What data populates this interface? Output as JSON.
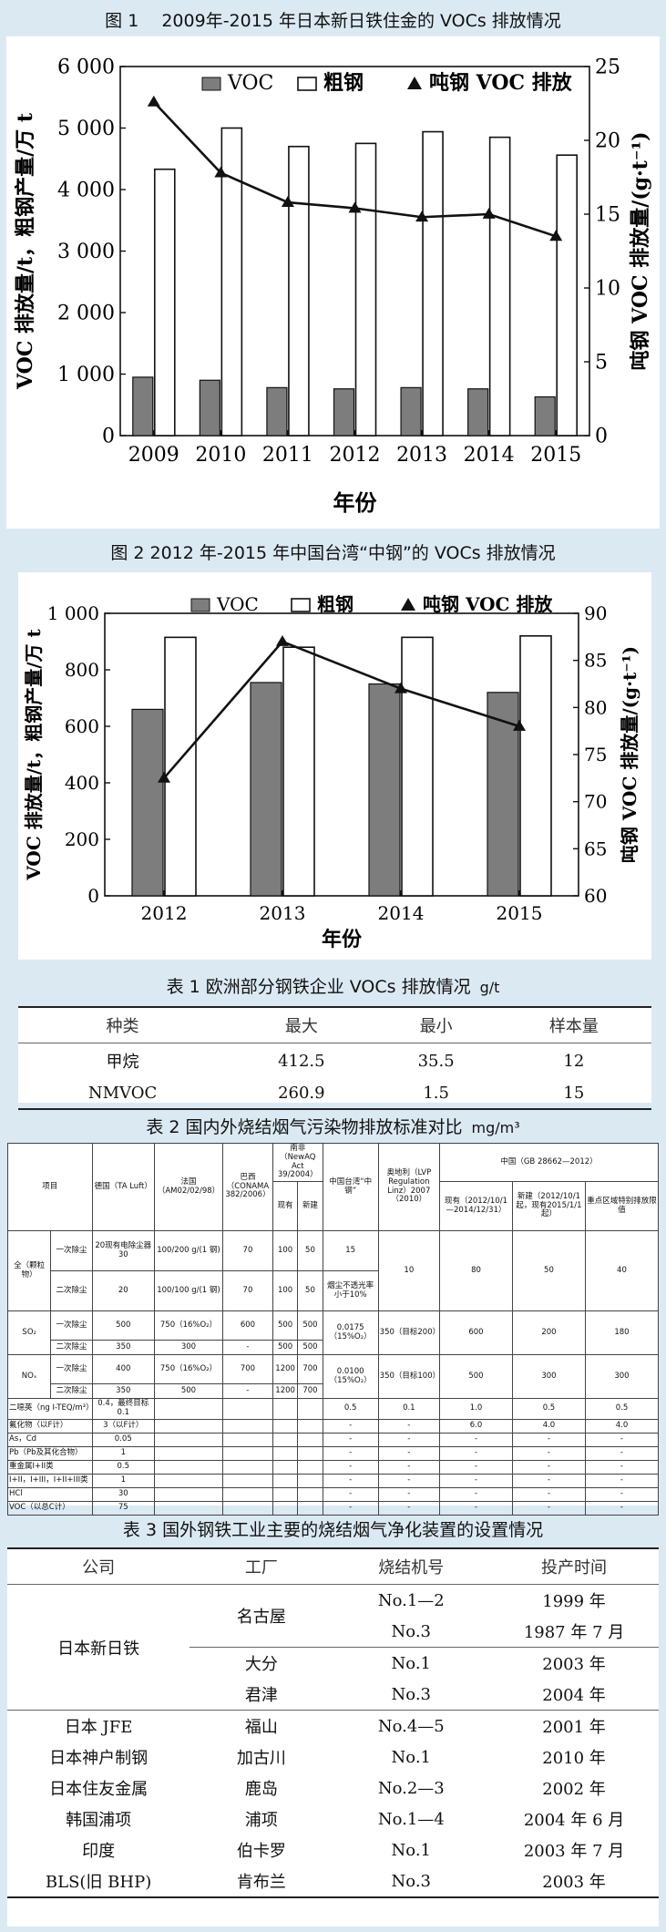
{
  "fig1": {
    "caption": "图 1　 2009年-2015 年日本新日铁住金的 VOCs 排放情况",
    "chart_data": {
      "type": "bar",
      "categories": [
        "2009",
        "2010",
        "2011",
        "2012",
        "2013",
        "2014",
        "2015"
      ],
      "series": [
        {
          "name": "VOC",
          "kind": "bar",
          "axis": "left",
          "values": [
            950,
            900,
            780,
            760,
            780,
            760,
            630
          ]
        },
        {
          "name": "粗钢",
          "kind": "bar",
          "axis": "left",
          "values": [
            4330,
            5000,
            4700,
            4750,
            4940,
            4850,
            4560
          ]
        },
        {
          "name": "吨钢 VOC 排放",
          "kind": "line",
          "axis": "right",
          "values": [
            22.6,
            17.8,
            15.8,
            15.4,
            14.8,
            15.0,
            13.5
          ]
        }
      ],
      "xlabel": "年份",
      "ylabel": "VOC 排放量/t，粗钢产量/万 t",
      "y2label": "吨钢 VOC 排放量/(g·t⁻¹)",
      "ylim": [
        0,
        6000
      ],
      "y2lim": [
        0,
        25
      ],
      "yticks": [
        "0",
        "1 000",
        "2 000",
        "3 000",
        "4 000",
        "5 000",
        "6 000"
      ],
      "y2ticks": [
        "0",
        "5",
        "10",
        "15",
        "20",
        "25"
      ],
      "legend": "top"
    }
  },
  "fig2": {
    "caption": "图 2 2012 年-2015 年中国台湾“中钢”的 VOCs 排放情况",
    "chart_data": {
      "type": "bar",
      "categories": [
        "2012",
        "2013",
        "2014",
        "2015"
      ],
      "series": [
        {
          "name": "VOC",
          "kind": "bar",
          "axis": "left",
          "values": [
            660,
            755,
            750,
            720
          ]
        },
        {
          "name": "粗钢",
          "kind": "bar",
          "axis": "left",
          "values": [
            915,
            880,
            915,
            920
          ]
        },
        {
          "name": "吨钢 VOC 排放",
          "kind": "line",
          "axis": "right",
          "values": [
            72.5,
            87,
            82,
            78
          ]
        }
      ],
      "xlabel": "年份",
      "ylabel": "VOC 排放量/t，粗钢产量/万 t",
      "y2label": "吨钢 VOC 排放量/(g·t⁻¹)",
      "ylim": [
        0,
        1000
      ],
      "y2lim": [
        60,
        90
      ],
      "yticks": [
        "0",
        "200",
        "400",
        "600",
        "800",
        "1 000"
      ],
      "y2ticks": [
        "60",
        "65",
        "70",
        "75",
        "80",
        "85",
        "90"
      ],
      "legend": "top"
    }
  },
  "table1": {
    "caption": "表 1 欧洲部分钢铁企业 VOCs 排放情况",
    "unit": "g/t",
    "headers": [
      "种类",
      "最大",
      "最小",
      "样本量"
    ],
    "rows": [
      [
        "甲烷",
        "412.5",
        "35.5",
        "12"
      ],
      [
        "NMVOC",
        "260.9",
        "1.5",
        "15"
      ]
    ]
  },
  "table2": {
    "caption": "表 2 国内外烧结烟气污染物排放标准对比",
    "unit": "mg/m³",
    "h": {
      "item": "项目",
      "de": "德国（TA Luft）",
      "fr": "法国（AM02/02/98）",
      "br": "巴西（CONAMA 382/2006）",
      "za": "南非（NewAQ Act 39/2004）",
      "za_now": "现有",
      "za_new": "新建",
      "tw": "中国台湾“中钢”",
      "at": "奥地利（LVP Regulation Linz）2007（2010）",
      "cn": "中国（GB 28662—2012）",
      "cn_now": "现有（2012/10/1—2014/12/31）",
      "cn_new": "新建（2012/10/1起，现有2015/1/1起）",
      "cn_key": "重点区域特别排放限值"
    },
    "rows": {
      "pm": {
        "name": "全（颗粒物）",
        "s1": "一次除尘",
        "s2": "二次除尘",
        "de1": "20现有电除尘器30",
        "fr1": "100/200 g/(1 钢)",
        "br1": "70",
        "za1a": "100",
        "za1b": "50",
        "tw1": "15",
        "de2": "20",
        "fr2": "100/100 g/(1 钢)",
        "br2": "70",
        "za2a": "100",
        "za2b": "50",
        "tw2": "烟尘不透光率小于10%",
        "at": "10",
        "cn1": "80",
        "cn2": "50",
        "cn3": "40"
      },
      "so2": {
        "name": "SO₂",
        "s1": "一次除尘",
        "s2": "二次除尘",
        "de1": "500",
        "fr1": "750（16%O₂）",
        "br1": "600",
        "za1a": "500",
        "za1b": "500",
        "tw": "0.0175（15%O₂）",
        "at": "350（目标200）",
        "de2": "350",
        "fr2": "300",
        "br2": "-",
        "za2a": "500",
        "za2b": "500",
        "cn1": "600",
        "cn2": "200",
        "cn3": "180"
      },
      "nox": {
        "name": "NOₓ",
        "s1": "一次除尘",
        "s2": "二次除尘",
        "de1": "400",
        "fr1": "750（16%O₂）",
        "br1": "700",
        "za1a": "1200",
        "za1b": "700",
        "tw": "0.0100（15%O₂）",
        "at": "350（目标100）",
        "de2": "350",
        "fr2": "500",
        "br2": "-",
        "za2a": "1200",
        "za2b": "700",
        "cn1": "500",
        "cn2": "300",
        "cn3": "300"
      },
      "extra": [
        {
          "name": "二噁英（ng I-TEQ/m³）",
          "de": "0.4，最终目标0.1",
          "fr": "",
          "br": "",
          "za1": "",
          "za2": "",
          "tw": "0.5",
          "at": "0.1",
          "cn1": "1.0",
          "cn2": "0.5",
          "cn3": "0.5"
        },
        {
          "name": "氟化物（以F计）",
          "de": "3（以F计）",
          "fr": "",
          "br": "",
          "za1": "",
          "za2": "",
          "tw": "-",
          "at": "-",
          "cn1": "6.0",
          "cn2": "4.0",
          "cn3": "4.0"
        },
        {
          "name": "As，Cd",
          "de": "0.05",
          "fr": "",
          "br": "",
          "za1": "",
          "za2": "",
          "tw": "-",
          "at": "-",
          "cn1": "-",
          "cn2": "-",
          "cn3": "-"
        },
        {
          "name": "Pb（Pb及其化合物）",
          "de": "1",
          "fr": "",
          "br": "",
          "za1": "",
          "za2": "",
          "tw": "-",
          "at": "-",
          "cn1": "-",
          "cn2": "-",
          "cn3": "-"
        },
        {
          "name": "重金属I+II类",
          "de": "0.5",
          "fr": "",
          "br": "",
          "za1": "",
          "za2": "",
          "tw": "-",
          "at": "-",
          "cn1": "-",
          "cn2": "-",
          "cn3": "-"
        },
        {
          "name": "I+II，I+III，I+II+III类",
          "de": "1",
          "fr": "",
          "br": "",
          "za1": "",
          "za2": "",
          "tw": "-",
          "at": "-",
          "cn1": "-",
          "cn2": "-",
          "cn3": "-"
        },
        {
          "name": "HCl",
          "de": "30",
          "fr": "",
          "br": "",
          "za1": "",
          "za2": "",
          "tw": "-",
          "at": "-",
          "cn1": "-",
          "cn2": "-",
          "cn3": "-"
        },
        {
          "name": "VOC（以总C计）",
          "de": "75",
          "fr": "",
          "br": "",
          "za1": "",
          "za2": "",
          "tw": "-",
          "at": "-",
          "cn1": "-",
          "cn2": "-",
          "cn3": "-"
        }
      ]
    }
  },
  "table3": {
    "caption": "表 3 国外钢铁工业主要的烧结烟气净化装置的设置情况",
    "headers": [
      "公司",
      "工厂",
      "烧结机号",
      "投产时间"
    ],
    "nsc": {
      "company": "日本新日铁",
      "plant1": "名古屋",
      "m1": "No.1—2",
      "t1": "1999 年",
      "m2": "No.3",
      "t2": "1987 年 7 月",
      "plant2": "大分",
      "m3": "No.1",
      "t3": "2003 年",
      "plant3": "君津",
      "m4": "No.3",
      "t4": "2004 年"
    },
    "rows": [
      [
        "日本 JFE",
        "福山",
        "No.4—5",
        "2001 年"
      ],
      [
        "日本神户制钢",
        "加古川",
        "No.1",
        "2010 年"
      ],
      [
        "日本住友金属",
        "鹿岛",
        "No.2—3",
        "2002 年"
      ],
      [
        "韩国浦项",
        "浦项",
        "No.1—4",
        "2004 年 6 月"
      ],
      [
        "印度",
        "伯卡罗",
        "No.1",
        "2003 年 7 月"
      ],
      [
        "BLS(旧 BHP)",
        "肯布兰",
        "No.3",
        "2003 年"
      ]
    ]
  }
}
